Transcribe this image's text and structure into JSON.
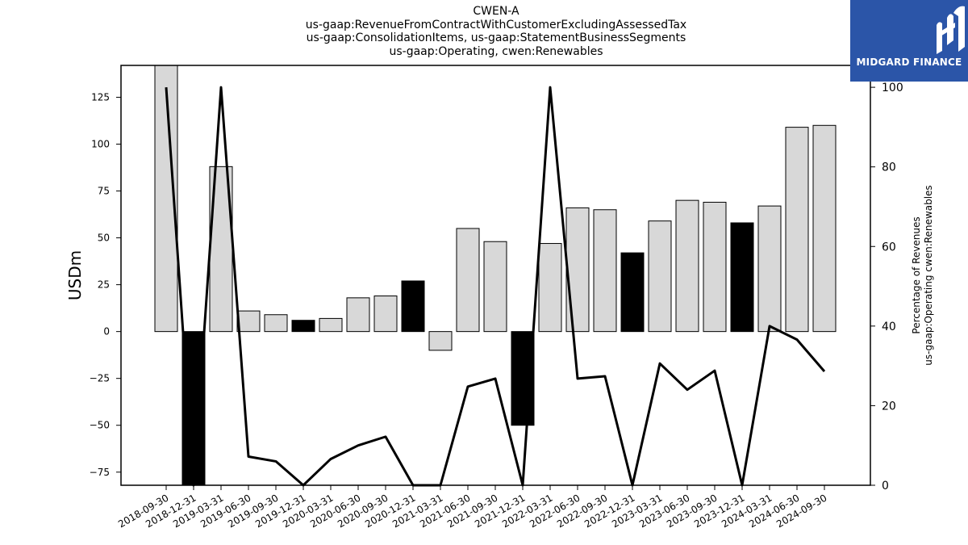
{
  "chart_data": {
    "type": "bar",
    "title": "CWEN-A",
    "subtitle_lines": [
      "us-gaap:RevenueFromContractWithCustomerExcludingAssessedTax",
      "us-gaap:ConsolidationItems, us-gaap:StatementBusinessSegments",
      "us-gaap:Operating, cwen:Renewables"
    ],
    "ylabel": "USDm",
    "y2label_lines": [
      "Percentage of Revenues",
      "us-gaap:Operating cwen:Renewables"
    ],
    "ylim": [
      -82,
      142
    ],
    "y2lim": [
      0,
      105.5
    ],
    "yticks": [
      -75,
      -50,
      -25,
      0,
      25,
      50,
      75,
      100,
      125
    ],
    "y2ticks": [
      0,
      20,
      40,
      60,
      80,
      100
    ],
    "categories": [
      "2018-09-30",
      "2018-12-31",
      "2019-03-31",
      "2019-06-30",
      "2019-09-30",
      "2019-12-31",
      "2020-03-31",
      "2020-06-30",
      "2020-09-30",
      "2020-12-31",
      "2021-03-31",
      "2021-06-30",
      "2021-09-30",
      "2021-12-31",
      "2022-03-31",
      "2022-06-30",
      "2022-09-30",
      "2022-12-31",
      "2023-03-31",
      "2023-06-30",
      "2023-09-30",
      "2023-12-31",
      "2024-03-31",
      "2024-06-30",
      "2024-09-30"
    ],
    "series": [
      {
        "type": "bar",
        "values": [
          142,
          -82,
          88,
          11,
          9,
          6,
          7,
          18,
          19,
          27,
          -10,
          55,
          48,
          -50,
          47,
          66,
          65,
          42,
          59,
          70,
          69,
          58,
          67,
          109,
          110
        ],
        "highlight": [
          false,
          true,
          false,
          false,
          false,
          true,
          false,
          false,
          false,
          true,
          false,
          false,
          false,
          true,
          false,
          false,
          false,
          true,
          false,
          false,
          false,
          true,
          false,
          false,
          false
        ]
      },
      {
        "type": "line",
        "axis": "right",
        "values": [
          100,
          0,
          100,
          7.2,
          6,
          0,
          6.6,
          10,
          12.2,
          0,
          0,
          24.8,
          26.8,
          0,
          100,
          26.8,
          27.4,
          0,
          30.6,
          24,
          28.8,
          0,
          40,
          36.6,
          28.6
        ]
      }
    ],
    "colors": {
      "bar": "#d8d8d8",
      "bar_highlight": "#000000",
      "line": "#000000"
    }
  },
  "logo": {
    "text": "MIDGARD FINANCE",
    "color": "#2b55a8",
    "icon": "midgard-logo-icon"
  }
}
